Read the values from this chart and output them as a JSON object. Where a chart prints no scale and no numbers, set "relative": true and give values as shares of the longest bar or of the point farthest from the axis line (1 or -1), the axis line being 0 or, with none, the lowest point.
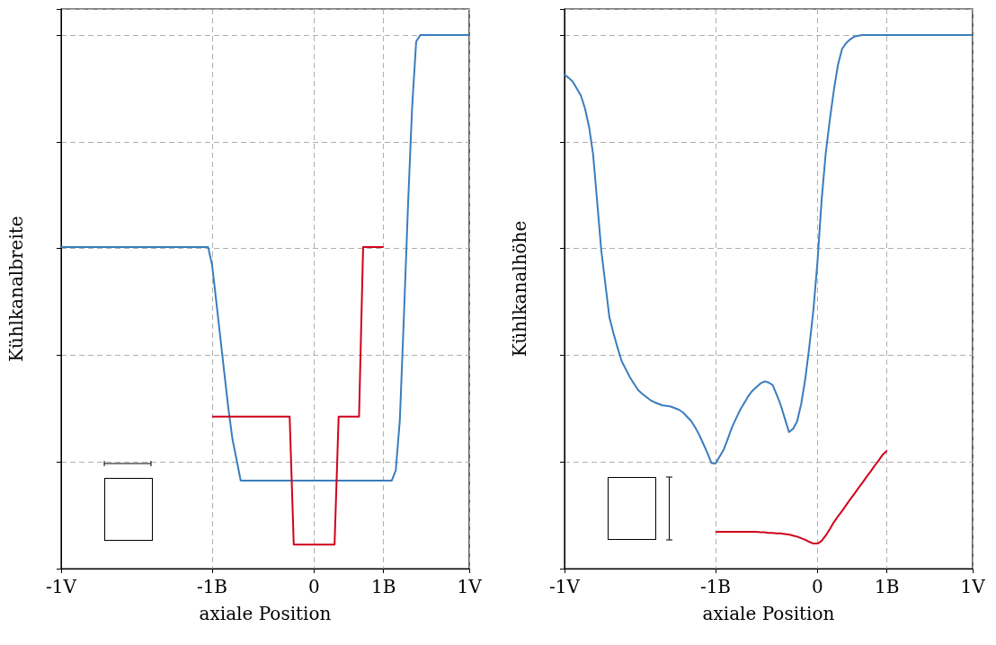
{
  "chart_data": [
    {
      "type": "line",
      "xlabel": "axiale Position",
      "ylabel": "Kühlkanalbreite",
      "relative": true,
      "grid": true,
      "categories": [
        "-1V",
        null,
        null,
        null,
        null,
        null,
        null,
        null,
        null,
        null,
        null,
        null,
        null,
        null,
        null,
        null,
        null,
        null,
        null,
        null,
        null,
        null,
        null,
        null,
        null,
        null,
        null,
        null,
        null,
        null,
        null,
        null,
        null,
        null,
        null,
        null,
        null,
        "-1B",
        null,
        null,
        null,
        null,
        null,
        null,
        null,
        null,
        null,
        null,
        null,
        null,
        null,
        null,
        null,
        null,
        null,
        null,
        null,
        null,
        null,
        null,
        null,
        null,
        "0",
        null,
        null,
        null,
        null,
        null,
        null,
        null,
        null,
        null,
        null,
        null,
        null,
        null,
        null,
        null,
        null,
        "1B",
        null,
        null,
        null,
        null,
        null,
        null,
        null,
        null,
        null,
        null,
        null,
        null,
        null,
        null,
        null,
        null,
        null,
        null,
        null,
        null,
        "1V"
      ],
      "series": [
        {
          "color": "#3a7dbd",
          "values": [
            0.603,
            0.603,
            0.603,
            0.603,
            0.603,
            0.603,
            0.603,
            0.603,
            0.603,
            0.603,
            0.603,
            0.603,
            0.603,
            0.603,
            0.603,
            0.603,
            0.603,
            0.603,
            0.603,
            0.603,
            0.603,
            0.603,
            0.603,
            0.603,
            0.603,
            0.603,
            0.603,
            0.603,
            0.603,
            0.603,
            0.603,
            0.603,
            0.603,
            0.603,
            0.603,
            0.603,
            0.603,
            0.569,
            0.502,
            0.434,
            0.366,
            0.299,
            0.242,
            0.204,
            0.165,
            0.165,
            0.165,
            0.165,
            0.165,
            0.165,
            0.165,
            0.165,
            0.165,
            0.165,
            0.165,
            0.165,
            0.165,
            0.165,
            0.165,
            0.165,
            0.165,
            0.165,
            0.165,
            0.165,
            0.165,
            0.165,
            0.165,
            0.165,
            0.165,
            0.165,
            0.165,
            0.165,
            0.165,
            0.165,
            0.165,
            0.165,
            0.165,
            0.165,
            0.165,
            0.165,
            0.165,
            0.165,
            0.184,
            0.279,
            0.474,
            0.681,
            0.864,
            0.988,
            1,
            1,
            1,
            1,
            1,
            1,
            1,
            1,
            1,
            1,
            1,
            1,
            1
          ]
        },
        {
          "color": "#d0021b",
          "values": [
            null,
            null,
            null,
            null,
            null,
            null,
            null,
            null,
            null,
            null,
            null,
            null,
            null,
            null,
            null,
            null,
            null,
            null,
            null,
            null,
            null,
            null,
            null,
            null,
            null,
            null,
            null,
            null,
            null,
            null,
            null,
            null,
            null,
            null,
            null,
            null,
            null,
            0.285,
            0.285,
            0.285,
            0.285,
            0.285,
            0.285,
            0.285,
            0.285,
            0.285,
            0.285,
            0.285,
            0.285,
            0.285,
            0.285,
            0.285,
            0.285,
            0.285,
            0.285,
            0.285,
            0.285,
            0.045,
            0.045,
            0.045,
            0.045,
            0.045,
            0.045,
            0.045,
            0.045,
            0.045,
            0.045,
            0.045,
            0.285,
            0.285,
            0.285,
            0.285,
            0.285,
            0.285,
            0.603,
            0.603,
            0.603,
            0.603,
            0.603,
            0.603,
            null,
            null,
            null,
            null,
            null,
            null,
            null,
            null,
            null,
            null,
            null,
            null,
            null,
            null,
            null,
            null,
            null,
            null,
            null,
            null,
            null
          ]
        }
      ]
    },
    {
      "type": "line",
      "xlabel": "axiale Position",
      "ylabel": "Kühlkanalhöhe",
      "relative": true,
      "grid": true,
      "categories": [
        "-1V",
        null,
        null,
        null,
        null,
        null,
        null,
        null,
        null,
        null,
        null,
        null,
        null,
        null,
        null,
        null,
        null,
        null,
        null,
        null,
        null,
        null,
        null,
        null,
        null,
        null,
        null,
        null,
        null,
        null,
        null,
        null,
        null,
        null,
        null,
        null,
        null,
        "-1B",
        null,
        null,
        null,
        null,
        null,
        null,
        null,
        null,
        null,
        null,
        null,
        null,
        null,
        null,
        null,
        null,
        null,
        null,
        null,
        null,
        null,
        null,
        null,
        null,
        "0",
        null,
        null,
        null,
        null,
        null,
        null,
        null,
        null,
        null,
        null,
        null,
        null,
        null,
        null,
        null,
        null,
        "1B",
        null,
        null,
        null,
        null,
        null,
        null,
        null,
        null,
        null,
        null,
        null,
        null,
        null,
        null,
        null,
        null,
        null,
        null,
        null,
        null,
        "1V"
      ],
      "series": [
        {
          "color": "#3a7dbd",
          "values": [
            0.926,
            0.92,
            0.913,
            0.9,
            0.887,
            0.863,
            0.829,
            0.777,
            0.688,
            0.597,
            0.534,
            0.471,
            0.441,
            0.414,
            0.389,
            0.374,
            0.359,
            0.347,
            0.335,
            0.328,
            0.322,
            0.316,
            0.312,
            0.309,
            0.306,
            0.305,
            0.304,
            0.301,
            0.298,
            0.293,
            0.285,
            0.277,
            0.265,
            0.251,
            0.234,
            0.217,
            0.198,
            0.197,
            0.21,
            0.223,
            0.243,
            0.264,
            0.281,
            0.297,
            0.31,
            0.323,
            0.333,
            0.34,
            0.347,
            0.351,
            0.349,
            0.344,
            0.326,
            0.306,
            0.281,
            0.256,
            0.262,
            0.276,
            0.309,
            0.356,
            0.417,
            0.486,
            0.577,
            0.691,
            0.778,
            0.841,
            0.897,
            0.944,
            0.974,
            0.985,
            0.992,
            0.997,
            0.999,
            1,
            1,
            1,
            1,
            1,
            1,
            1,
            1,
            1,
            1,
            1,
            1,
            1,
            1,
            1,
            1,
            1,
            1,
            1,
            1,
            1,
            1,
            1,
            1,
            1,
            1,
            1,
            1
          ]
        },
        {
          "color": "#d0021b",
          "values": [
            null,
            null,
            null,
            null,
            null,
            null,
            null,
            null,
            null,
            null,
            null,
            null,
            null,
            null,
            null,
            null,
            null,
            null,
            null,
            null,
            null,
            null,
            null,
            null,
            null,
            null,
            null,
            null,
            null,
            null,
            null,
            null,
            null,
            null,
            null,
            null,
            null,
            0.069,
            0.069,
            0.069,
            0.069,
            0.069,
            0.069,
            0.069,
            0.069,
            0.069,
            0.069,
            0.069,
            0.068,
            0.068,
            0.067,
            0.067,
            0.066,
            0.066,
            0.065,
            0.064,
            0.062,
            0.06,
            0.057,
            0.054,
            0.05,
            0.047,
            0.047,
            0.052,
            0.062,
            0.074,
            0.087,
            0.098,
            0.108,
            0.119,
            0.13,
            0.14,
            0.151,
            0.161,
            0.172,
            0.182,
            0.193,
            0.203,
            0.214,
            0.221,
            null,
            null,
            null,
            null,
            null,
            null,
            null,
            null,
            null,
            null,
            null,
            null,
            null,
            null,
            null,
            null,
            null,
            null,
            null,
            null,
            null
          ]
        }
      ]
    }
  ]
}
